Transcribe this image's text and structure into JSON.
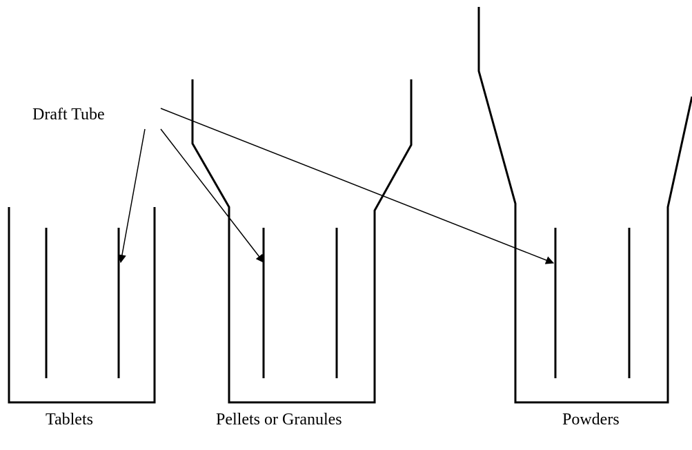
{
  "label": "Draft Tube",
  "captions": [
    "Tablets",
    "Pellets or Granules",
    "Powders"
  ]
}
